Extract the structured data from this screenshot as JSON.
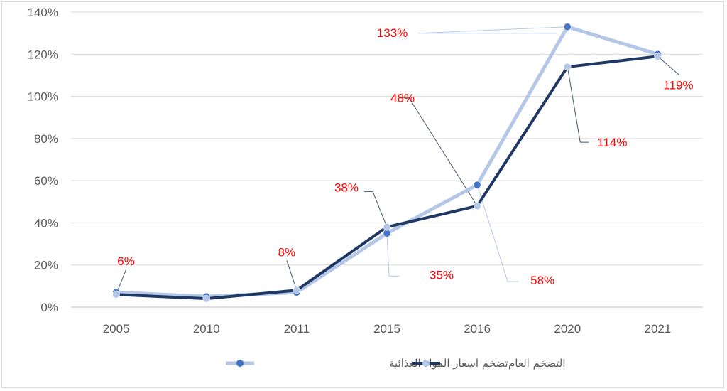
{
  "chart_data": {
    "type": "line",
    "categories": [
      "2005",
      "2010",
      "2011",
      "2015",
      "2016",
      "2020",
      "2021"
    ],
    "ylim": [
      0,
      140
    ],
    "yticks": [
      "0%",
      "20%",
      "40%",
      "60%",
      "80%",
      "100%",
      "120%",
      "140%"
    ],
    "grid": true,
    "legend_position": "bottom",
    "series": [
      {
        "name": "تضخم اسعار المواد الغذائية",
        "color": "#b4c7e7",
        "marker_color": "#4472c4",
        "values": [
          7,
          5,
          7,
          35,
          58,
          133,
          120
        ],
        "labels": [
          "",
          "",
          "",
          "35%",
          "58%",
          "133%",
          ""
        ]
      },
      {
        "name": "التضخم العام",
        "color": "#203864",
        "marker_color": "#b4c7e7",
        "values": [
          6,
          4,
          8,
          38,
          48,
          114,
          119
        ],
        "labels": [
          "6%",
          "",
          "8%",
          "38%",
          "48%",
          "114%",
          "119%"
        ]
      }
    ]
  }
}
